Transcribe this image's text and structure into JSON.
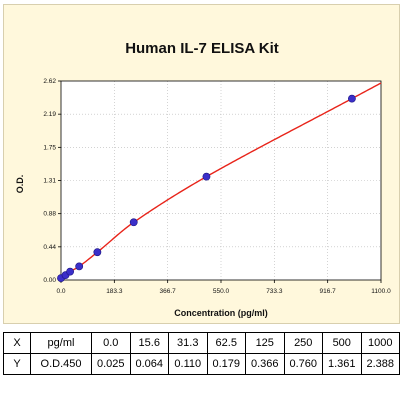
{
  "chart_data": {
    "type": "scatter",
    "title": "Human IL-7 ELISA Kit",
    "xlabel": "Concentration (pg/ml)",
    "ylabel": "O.D.",
    "xlim": [
      0,
      1100
    ],
    "ylim": [
      0,
      2.62
    ],
    "x_ticks": [
      "0.0",
      "183.3",
      "366.7",
      "550.0",
      "733.3",
      "916.7",
      "1100.0"
    ],
    "y_ticks": [
      "0.00",
      "0.44",
      "0.88",
      "1.31",
      "1.75",
      "2.19",
      "2.62"
    ],
    "points": [
      {
        "x": 0.0,
        "y": 0.025
      },
      {
        "x": 15.6,
        "y": 0.064
      },
      {
        "x": 31.3,
        "y": 0.11
      },
      {
        "x": 62.5,
        "y": 0.179
      },
      {
        "x": 125,
        "y": 0.366
      },
      {
        "x": 250,
        "y": 0.76
      },
      {
        "x": 500,
        "y": 1.361
      },
      {
        "x": 1000,
        "y": 2.388
      }
    ],
    "fit_curve": {
      "color": "#e8241a"
    },
    "point_color": "#3b2fc9",
    "background": "#FFF8DC",
    "grid": true
  },
  "table": {
    "x_label": "X",
    "y_label": "Y",
    "x_unit": "pg/ml",
    "y_unit": "O.D.450",
    "x_values": [
      "0.0",
      "15.6",
      "31.3",
      "62.5",
      "125",
      "250",
      "500",
      "1000"
    ],
    "y_values": [
      "0.025",
      "0.064",
      "0.110",
      "0.179",
      "0.366",
      "0.760",
      "1.361",
      "2.388"
    ]
  }
}
